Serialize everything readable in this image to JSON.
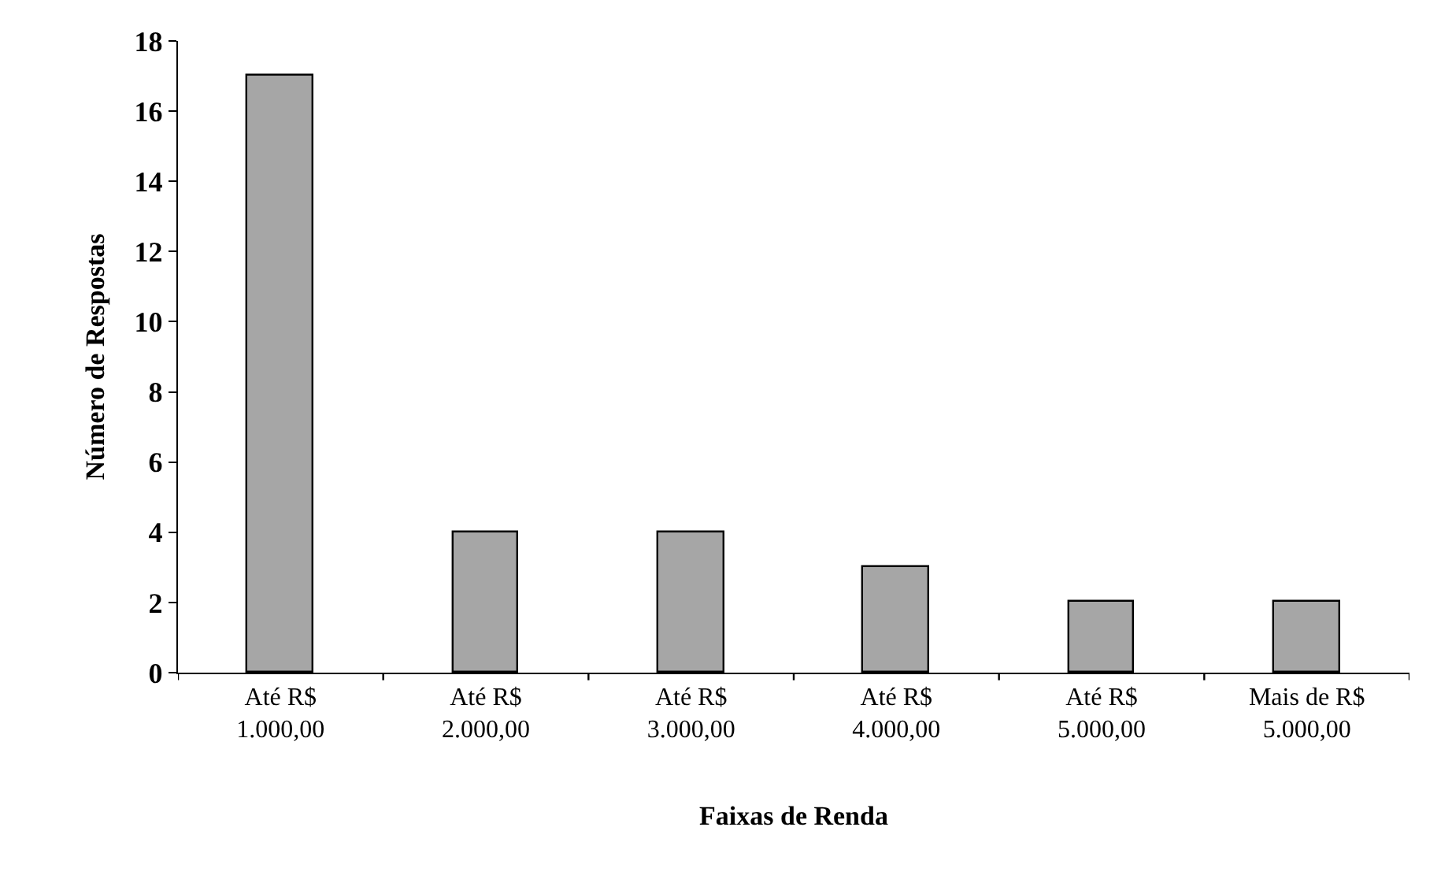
{
  "chart_data": {
    "type": "bar",
    "xlabel": "Faixas de Renda",
    "ylabel": "Número de Respostas",
    "categories": [
      "Até R$ 1.000,00",
      "Até R$ 2.000,00",
      "Até R$ 3.000,00",
      "Até R$ 4.000,00",
      "Até R$ 5.000,00",
      "Mais de R$ 5.000,00"
    ],
    "values": [
      17,
      4,
      4,
      3,
      2,
      2
    ],
    "color": "#a6a6a6",
    "ylim": [
      0,
      18
    ],
    "yticks": [
      0,
      2,
      4,
      6,
      8,
      10,
      12,
      14,
      16,
      18
    ],
    "grid": false
  }
}
